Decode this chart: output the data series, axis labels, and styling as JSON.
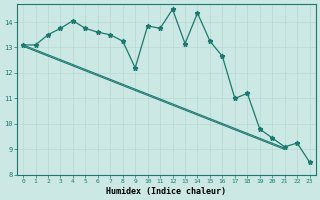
{
  "xlabel": "Humidex (Indice chaleur)",
  "bg_color": "#cce8e4",
  "grid_color": "#b8d8d4",
  "line_color": "#1a7a6e",
  "x_values": [
    0,
    1,
    2,
    3,
    4,
    5,
    6,
    7,
    8,
    9,
    10,
    11,
    12,
    13,
    14,
    15,
    16,
    17,
    18,
    19,
    20,
    21,
    22,
    23
  ],
  "line1_y": [
    13.1,
    13.1,
    13.5,
    13.75,
    14.05,
    13.75,
    13.6,
    13.5,
    13.25,
    12.2,
    13.85,
    13.75,
    14.5,
    13.15,
    14.35,
    13.25,
    12.65,
    11.0,
    11.2,
    9.8,
    9.45,
    9.1,
    9.25,
    8.5
  ],
  "trend1_x": [
    0,
    21
  ],
  "trend1_y": [
    13.1,
    9.1
  ],
  "trend2_x": [
    0,
    21
  ],
  "trend2_y": [
    13.1,
    9.05
  ],
  "ylim": [
    8,
    14.7
  ],
  "xlim": [
    -0.5,
    23.5
  ],
  "yticks": [
    8,
    9,
    10,
    11,
    12,
    13,
    14
  ],
  "xticks": [
    0,
    1,
    2,
    3,
    4,
    5,
    6,
    7,
    8,
    9,
    10,
    11,
    12,
    13,
    14,
    15,
    16,
    17,
    18,
    19,
    20,
    21,
    22,
    23
  ]
}
